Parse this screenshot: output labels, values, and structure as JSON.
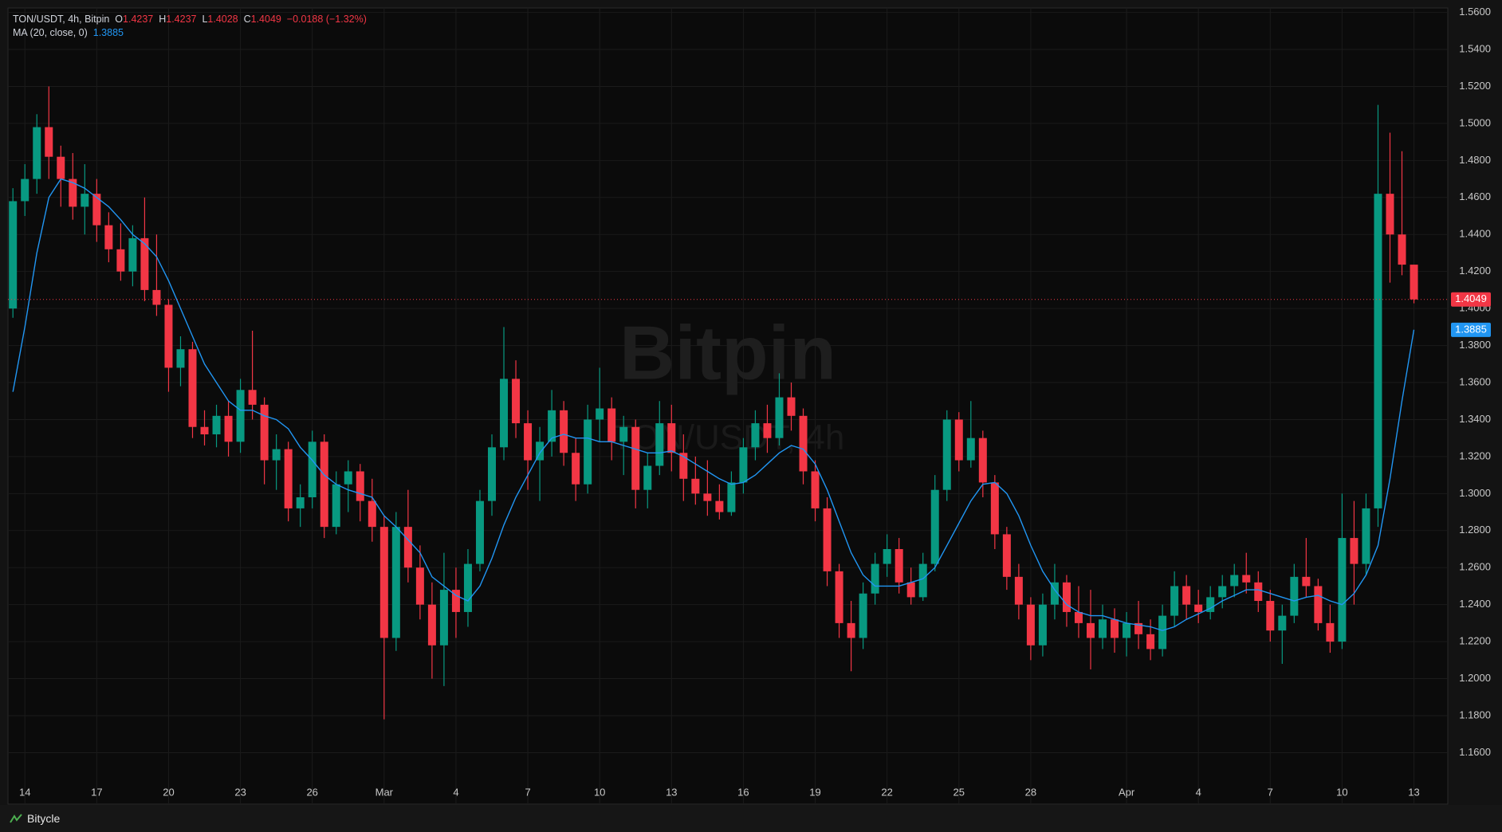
{
  "chart_data": {
    "type": "candlestick",
    "title": "TON/USDT, 4h, Bitpin",
    "ohlc_labels": [
      "O",
      "H",
      "L",
      "C"
    ],
    "change_label": "−0.0188 (−1.32%)",
    "watermark": "Bitpin",
    "watermark_sub": "TON/USDT, 4h",
    "footer": "Bitycle",
    "up_color": "#089981",
    "down_color": "#f23645",
    "grid": true,
    "last_price_line": true,
    "categories": [
      null,
      "14",
      null,
      null,
      null,
      null,
      null,
      "17",
      null,
      null,
      null,
      null,
      null,
      "20",
      null,
      null,
      null,
      null,
      null,
      "23",
      null,
      null,
      null,
      null,
      null,
      "26",
      null,
      null,
      null,
      null,
      null,
      "Mar",
      null,
      null,
      null,
      null,
      null,
      "4",
      null,
      null,
      null,
      null,
      null,
      "7",
      null,
      null,
      null,
      null,
      null,
      "10",
      null,
      null,
      null,
      null,
      null,
      "13",
      null,
      null,
      null,
      null,
      null,
      "16",
      null,
      null,
      null,
      null,
      null,
      "19",
      null,
      null,
      null,
      null,
      null,
      "22",
      null,
      null,
      null,
      null,
      null,
      "25",
      null,
      null,
      null,
      null,
      null,
      "28",
      null,
      null,
      null,
      null,
      null,
      null,
      null,
      "Apr",
      null,
      null,
      null,
      null,
      null,
      "4",
      null,
      null,
      null,
      null,
      null,
      "7",
      null,
      null,
      null,
      null,
      null,
      "10",
      null,
      null,
      null,
      null,
      null,
      "13"
    ],
    "candles": [
      [
        1.4,
        1.465,
        1.395,
        1.458
      ],
      [
        1.458,
        1.478,
        1.45,
        1.47
      ],
      [
        1.47,
        1.505,
        1.462,
        1.498
      ],
      [
        1.498,
        1.52,
        1.47,
        1.482
      ],
      [
        1.482,
        1.488,
        1.455,
        1.47
      ],
      [
        1.47,
        1.484,
        1.448,
        1.455
      ],
      [
        1.455,
        1.478,
        1.44,
        1.462
      ],
      [
        1.462,
        1.47,
        1.436,
        1.445
      ],
      [
        1.445,
        1.452,
        1.425,
        1.432
      ],
      [
        1.432,
        1.446,
        1.415,
        1.42
      ],
      [
        1.42,
        1.445,
        1.412,
        1.438
      ],
      [
        1.438,
        1.46,
        1.404,
        1.41
      ],
      [
        1.41,
        1.44,
        1.396,
        1.402
      ],
      [
        1.402,
        1.405,
        1.355,
        1.368
      ],
      [
        1.368,
        1.385,
        1.358,
        1.378
      ],
      [
        1.378,
        1.382,
        1.33,
        1.336
      ],
      [
        1.336,
        1.345,
        1.326,
        1.332
      ],
      [
        1.332,
        1.348,
        1.325,
        1.342
      ],
      [
        1.342,
        1.35,
        1.32,
        1.328
      ],
      [
        1.328,
        1.362,
        1.322,
        1.356
      ],
      [
        1.356,
        1.388,
        1.34,
        1.348
      ],
      [
        1.348,
        1.352,
        1.305,
        1.318
      ],
      [
        1.318,
        1.332,
        1.302,
        1.324
      ],
      [
        1.324,
        1.328,
        1.285,
        1.292
      ],
      [
        1.292,
        1.305,
        1.282,
        1.298
      ],
      [
        1.298,
        1.334,
        1.292,
        1.328
      ],
      [
        1.328,
        1.332,
        1.276,
        1.282
      ],
      [
        1.282,
        1.312,
        1.278,
        1.305
      ],
      [
        1.305,
        1.318,
        1.29,
        1.312
      ],
      [
        1.312,
        1.316,
        1.285,
        1.296
      ],
      [
        1.296,
        1.308,
        1.274,
        1.282
      ],
      [
        1.282,
        1.288,
        1.178,
        1.222
      ],
      [
        1.222,
        1.29,
        1.215,
        1.282
      ],
      [
        1.282,
        1.302,
        1.252,
        1.26
      ],
      [
        1.26,
        1.272,
        1.232,
        1.24
      ],
      [
        1.24,
        1.252,
        1.2,
        1.218
      ],
      [
        1.218,
        1.268,
        1.196,
        1.248
      ],
      [
        1.248,
        1.26,
        1.222,
        1.236
      ],
      [
        1.236,
        1.27,
        1.228,
        1.262
      ],
      [
        1.262,
        1.302,
        1.258,
        1.296
      ],
      [
        1.296,
        1.332,
        1.288,
        1.325
      ],
      [
        1.325,
        1.39,
        1.318,
        1.362
      ],
      [
        1.362,
        1.372,
        1.33,
        1.338
      ],
      [
        1.338,
        1.345,
        1.302,
        1.318
      ],
      [
        1.318,
        1.336,
        1.296,
        1.328
      ],
      [
        1.328,
        1.356,
        1.32,
        1.345
      ],
      [
        1.345,
        1.35,
        1.315,
        1.322
      ],
      [
        1.322,
        1.33,
        1.296,
        1.305
      ],
      [
        1.305,
        1.348,
        1.3,
        1.34
      ],
      [
        1.34,
        1.368,
        1.328,
        1.346
      ],
      [
        1.346,
        1.352,
        1.318,
        1.328
      ],
      [
        1.328,
        1.342,
        1.31,
        1.336
      ],
      [
        1.336,
        1.34,
        1.292,
        1.302
      ],
      [
        1.302,
        1.322,
        1.292,
        1.315
      ],
      [
        1.315,
        1.35,
        1.31,
        1.338
      ],
      [
        1.338,
        1.348,
        1.312,
        1.322
      ],
      [
        1.322,
        1.332,
        1.296,
        1.308
      ],
      [
        1.308,
        1.32,
        1.294,
        1.3
      ],
      [
        1.3,
        1.318,
        1.288,
        1.296
      ],
      [
        1.296,
        1.305,
        1.286,
        1.29
      ],
      [
        1.29,
        1.312,
        1.288,
        1.306
      ],
      [
        1.306,
        1.33,
        1.3,
        1.325
      ],
      [
        1.325,
        1.345,
        1.318,
        1.338
      ],
      [
        1.338,
        1.348,
        1.322,
        1.33
      ],
      [
        1.33,
        1.365,
        1.326,
        1.352
      ],
      [
        1.352,
        1.36,
        1.334,
        1.342
      ],
      [
        1.342,
        1.346,
        1.305,
        1.312
      ],
      [
        1.312,
        1.318,
        1.285,
        1.292
      ],
      [
        1.292,
        1.298,
        1.25,
        1.258
      ],
      [
        1.258,
        1.262,
        1.222,
        1.23
      ],
      [
        1.23,
        1.242,
        1.204,
        1.222
      ],
      [
        1.222,
        1.252,
        1.216,
        1.246
      ],
      [
        1.246,
        1.268,
        1.24,
        1.262
      ],
      [
        1.262,
        1.278,
        1.255,
        1.27
      ],
      [
        1.27,
        1.276,
        1.246,
        1.252
      ],
      [
        1.252,
        1.26,
        1.24,
        1.244
      ],
      [
        1.244,
        1.268,
        1.242,
        1.262
      ],
      [
        1.262,
        1.31,
        1.258,
        1.302
      ],
      [
        1.302,
        1.345,
        1.296,
        1.34
      ],
      [
        1.34,
        1.344,
        1.312,
        1.318
      ],
      [
        1.318,
        1.35,
        1.314,
        1.33
      ],
      [
        1.33,
        1.334,
        1.298,
        1.306
      ],
      [
        1.306,
        1.31,
        1.27,
        1.278
      ],
      [
        1.278,
        1.282,
        1.248,
        1.255
      ],
      [
        1.255,
        1.262,
        1.232,
        1.24
      ],
      [
        1.24,
        1.244,
        1.21,
        1.218
      ],
      [
        1.218,
        1.246,
        1.212,
        1.24
      ],
      [
        1.24,
        1.262,
        1.232,
        1.252
      ],
      [
        1.252,
        1.256,
        1.228,
        1.236
      ],
      [
        1.236,
        1.25,
        1.222,
        1.23
      ],
      [
        1.23,
        1.248,
        1.205,
        1.222
      ],
      [
        1.222,
        1.24,
        1.216,
        1.232
      ],
      [
        1.232,
        1.238,
        1.214,
        1.222
      ],
      [
        1.222,
        1.236,
        1.212,
        1.23
      ],
      [
        1.23,
        1.242,
        1.216,
        1.224
      ],
      [
        1.224,
        1.232,
        1.21,
        1.216
      ],
      [
        1.216,
        1.24,
        1.212,
        1.234
      ],
      [
        1.234,
        1.258,
        1.228,
        1.25
      ],
      [
        1.25,
        1.256,
        1.232,
        1.24
      ],
      [
        1.24,
        1.248,
        1.23,
        1.236
      ],
      [
        1.236,
        1.25,
        1.232,
        1.244
      ],
      [
        1.244,
        1.256,
        1.238,
        1.25
      ],
      [
        1.25,
        1.262,
        1.244,
        1.256
      ],
      [
        1.256,
        1.268,
        1.246,
        1.252
      ],
      [
        1.252,
        1.258,
        1.236,
        1.242
      ],
      [
        1.242,
        1.248,
        1.22,
        1.226
      ],
      [
        1.226,
        1.24,
        1.208,
        1.234
      ],
      [
        1.234,
        1.262,
        1.23,
        1.255
      ],
      [
        1.255,
        1.276,
        1.244,
        1.25
      ],
      [
        1.25,
        1.254,
        1.226,
        1.23
      ],
      [
        1.23,
        1.24,
        1.214,
        1.22
      ],
      [
        1.22,
        1.3,
        1.216,
        1.276
      ],
      [
        1.276,
        1.296,
        1.24,
        1.262
      ],
      [
        1.262,
        1.3,
        1.256,
        1.292
      ],
      [
        1.292,
        1.51,
        1.282,
        1.462
      ],
      [
        1.462,
        1.495,
        1.414,
        1.44
      ],
      [
        1.44,
        1.485,
        1.418,
        1.4237
      ],
      [
        1.4237,
        1.4237,
        1.4028,
        1.4049
      ]
    ],
    "ma": {
      "label": "MA (20, close, 0)",
      "color": "#2196f3",
      "values": [
        1.355,
        1.39,
        1.43,
        1.46,
        1.47,
        1.468,
        1.465,
        1.46,
        1.455,
        1.448,
        1.44,
        1.435,
        1.428,
        1.415,
        1.4,
        1.385,
        1.37,
        1.36,
        1.35,
        1.345,
        1.345,
        1.342,
        1.34,
        1.335,
        1.325,
        1.318,
        1.31,
        1.305,
        1.302,
        1.3,
        1.298,
        1.288,
        1.282,
        1.275,
        1.268,
        1.255,
        1.25,
        1.245,
        1.242,
        1.25,
        1.265,
        1.283,
        1.298,
        1.31,
        1.322,
        1.33,
        1.332,
        1.33,
        1.33,
        1.328,
        1.328,
        1.326,
        1.324,
        1.322,
        1.322,
        1.323,
        1.32,
        1.316,
        1.312,
        1.308,
        1.305,
        1.306,
        1.31,
        1.316,
        1.322,
        1.326,
        1.324,
        1.316,
        1.302,
        1.285,
        1.268,
        1.256,
        1.25,
        1.25,
        1.25,
        1.252,
        1.254,
        1.26,
        1.272,
        1.284,
        1.296,
        1.305,
        1.306,
        1.3,
        1.288,
        1.272,
        1.258,
        1.248,
        1.24,
        1.236,
        1.234,
        1.234,
        1.232,
        1.23,
        1.229,
        1.228,
        1.226,
        1.228,
        1.232,
        1.235,
        1.238,
        1.242,
        1.245,
        1.248,
        1.248,
        1.246,
        1.244,
        1.242,
        1.244,
        1.245,
        1.242,
        1.24,
        1.246,
        1.256,
        1.272,
        1.308,
        1.35,
        1.3885
      ]
    },
    "ylim": [
      1.1322,
      1.5624
    ],
    "yticks": [
      {
        "value": 1.16,
        "label": "1.1600"
      },
      {
        "value": 1.18,
        "label": "1.1800"
      },
      {
        "value": 1.2,
        "label": "1.2000"
      },
      {
        "value": 1.22,
        "label": "1.2200"
      },
      {
        "value": 1.24,
        "label": "1.2400"
      },
      {
        "value": 1.26,
        "label": "1.2600"
      },
      {
        "value": 1.28,
        "label": "1.2800"
      },
      {
        "value": 1.3,
        "label": "1.3000"
      },
      {
        "value": 1.32,
        "label": "1.3200"
      },
      {
        "value": 1.34,
        "label": "1.3400"
      },
      {
        "value": 1.36,
        "label": "1.3600"
      },
      {
        "value": 1.38,
        "label": "1.3800"
      },
      {
        "value": 1.4,
        "label": "1.4000"
      },
      {
        "value": 1.42,
        "label": "1.4200"
      },
      {
        "value": 1.44,
        "label": "1.4400"
      },
      {
        "value": 1.46,
        "label": "1.4600"
      },
      {
        "value": 1.48,
        "label": "1.4800"
      },
      {
        "value": 1.5,
        "label": "1.5000"
      },
      {
        "value": 1.52,
        "label": "1.5200"
      },
      {
        "value": 1.54,
        "label": "1.5400"
      },
      {
        "value": 1.56,
        "label": "1.5600"
      }
    ]
  }
}
